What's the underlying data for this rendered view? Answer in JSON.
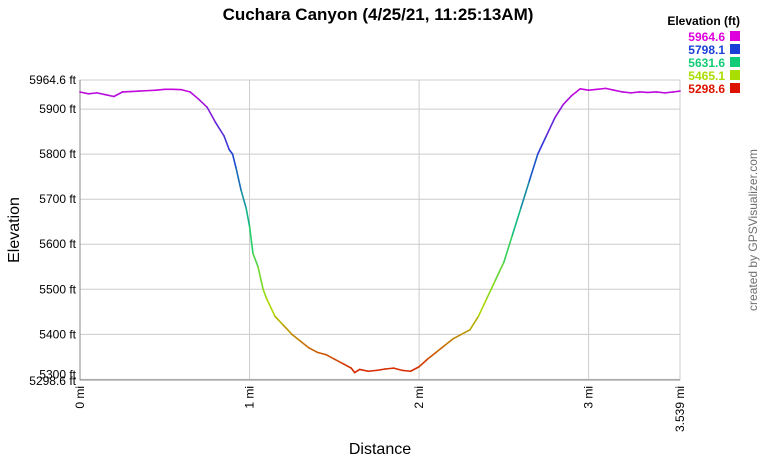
{
  "chart_data": {
    "type": "line",
    "title": "Cuchara Canyon (4/25/21, 11:25:13AM)",
    "xlabel": "Distance",
    "ylabel": "Elevation",
    "xlim": [
      0,
      3.539
    ],
    "ylim": [
      5298.6,
      5964.6
    ],
    "x_ticks": [
      {
        "value": 0,
        "label": "0 mi"
      },
      {
        "value": 1,
        "label": "1 mi"
      },
      {
        "value": 2,
        "label": "2 mi"
      },
      {
        "value": 3,
        "label": "3 mi"
      },
      {
        "value": 3.539,
        "label": "3.539 mi"
      }
    ],
    "y_ticks": [
      {
        "value": 5964.6,
        "label": "5964.6 ft"
      },
      {
        "value": 5900,
        "label": "5900 ft"
      },
      {
        "value": 5800,
        "label": "5800 ft"
      },
      {
        "value": 5700,
        "label": "5700 ft"
      },
      {
        "value": 5600,
        "label": "5600 ft"
      },
      {
        "value": 5500,
        "label": "5500 ft"
      },
      {
        "value": 5400,
        "label": "5400 ft"
      },
      {
        "value": 5300,
        "label": "5300 ft"
      },
      {
        "value": 5298.6,
        "label": "5298.6 ft"
      }
    ],
    "grid": true,
    "legend_placement": "top-right",
    "legend": {
      "title": "Elevation (ft)",
      "entries": [
        {
          "label": "5964.6",
          "color": "#dd00dd"
        },
        {
          "label": "5798.1",
          "color": "#1a3fd6"
        },
        {
          "label": "5631.6",
          "color": "#11cc77"
        },
        {
          "label": "5465.1",
          "color": "#aadd00"
        },
        {
          "label": "5298.6",
          "color": "#dd1100"
        }
      ]
    },
    "credit": "created by GPSVisualizer.com",
    "series": [
      {
        "x": [
          0,
          0.05,
          0.1,
          0.15,
          0.2,
          0.25,
          0.3,
          0.35,
          0.4,
          0.45,
          0.5,
          0.55,
          0.6,
          0.65,
          0.7,
          0.75,
          0.8,
          0.85,
          0.88,
          0.9,
          0.92,
          0.95,
          0.98,
          1.0,
          1.02,
          1.05,
          1.08,
          1.1,
          1.15,
          1.2,
          1.25,
          1.3,
          1.35,
          1.4,
          1.45,
          1.5,
          1.55,
          1.6,
          1.62,
          1.65,
          1.7,
          1.75,
          1.8,
          1.85,
          1.9,
          1.95,
          2.0,
          2.05,
          2.1,
          2.15,
          2.2,
          2.25,
          2.3,
          2.35,
          2.4,
          2.45,
          2.5,
          2.55,
          2.6,
          2.65,
          2.7,
          2.75,
          2.8,
          2.85,
          2.9,
          2.95,
          3.0,
          3.05,
          3.1,
          3.15,
          3.2,
          3.25,
          3.3,
          3.35,
          3.4,
          3.45,
          3.5,
          3.539
        ],
        "y": [
          5938,
          5934,
          5936,
          5932,
          5928,
          5938,
          5939,
          5940,
          5941,
          5942,
          5944,
          5944,
          5943,
          5938,
          5922,
          5904,
          5870,
          5840,
          5810,
          5800,
          5770,
          5720,
          5680,
          5640,
          5580,
          5550,
          5500,
          5480,
          5440,
          5420,
          5400,
          5385,
          5370,
          5360,
          5355,
          5345,
          5335,
          5325,
          5315,
          5322,
          5318,
          5320,
          5323,
          5325,
          5320,
          5318,
          5328,
          5345,
          5360,
          5375,
          5390,
          5400,
          5410,
          5440,
          5480,
          5520,
          5560,
          5620,
          5680,
          5740,
          5800,
          5840,
          5880,
          5910,
          5930,
          5945,
          5942,
          5944,
          5946,
          5942,
          5938,
          5936,
          5938,
          5937,
          5938,
          5936,
          5938,
          5940
        ]
      }
    ]
  }
}
